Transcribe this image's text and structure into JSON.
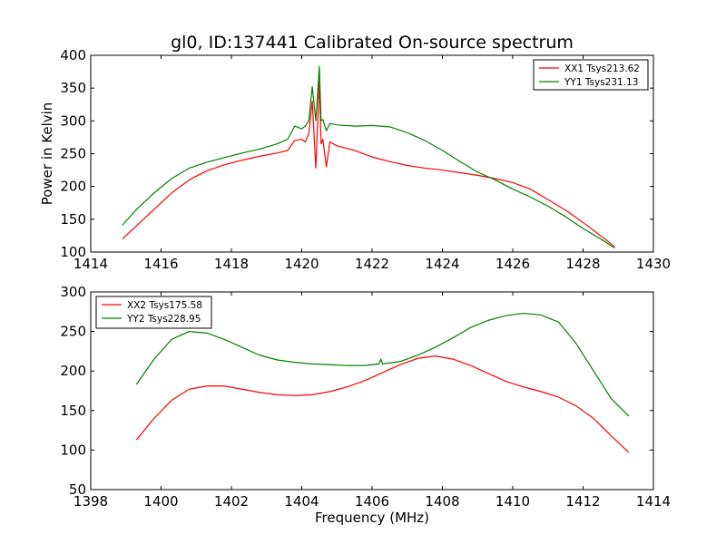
{
  "title": "gl0, ID:137441 Calibrated On-source spectrum",
  "chart_data": [
    {
      "type": "line",
      "title": "gl0, ID:137441 Calibrated On-source spectrum",
      "xlabel": "",
      "ylabel": "Power in Kelvin",
      "xlim": [
        1414,
        1430
      ],
      "ylim": [
        100,
        400
      ],
      "xticks": [
        1414,
        1416,
        1418,
        1420,
        1422,
        1424,
        1426,
        1428,
        1430
      ],
      "yticks": [
        100,
        150,
        200,
        250,
        300,
        350,
        400
      ],
      "legend_position": "top-right",
      "grid": false,
      "series": [
        {
          "name": "XX1 Tsys213.62",
          "color": "#ff0000",
          "x": [
            1414.9,
            1415.3,
            1415.8,
            1416.3,
            1416.8,
            1417.3,
            1417.8,
            1418.3,
            1418.8,
            1419.3,
            1419.6,
            1419.8,
            1420.0,
            1420.1,
            1420.2,
            1420.3,
            1420.4,
            1420.5,
            1420.55,
            1420.6,
            1420.7,
            1420.8,
            1421.0,
            1421.5,
            1422.0,
            1422.5,
            1423.0,
            1423.5,
            1424.0,
            1424.5,
            1425.0,
            1425.5,
            1426.0,
            1426.5,
            1427.0,
            1427.5,
            1428.0,
            1428.5,
            1428.9
          ],
          "values": [
            120,
            140,
            165,
            190,
            210,
            224,
            233,
            240,
            246,
            251,
            255,
            270,
            272,
            268,
            280,
            330,
            228,
            360,
            265,
            272,
            230,
            268,
            262,
            255,
            245,
            238,
            232,
            228,
            225,
            221,
            217,
            212,
            206,
            196,
            180,
            164,
            145,
            125,
            108
          ]
        },
        {
          "name": "YY1 Tsys231.13",
          "color": "#008000",
          "x": [
            1414.9,
            1415.3,
            1415.8,
            1416.3,
            1416.8,
            1417.3,
            1417.8,
            1418.3,
            1418.8,
            1419.3,
            1419.6,
            1419.8,
            1420.0,
            1420.1,
            1420.2,
            1420.3,
            1420.4,
            1420.5,
            1420.55,
            1420.6,
            1420.7,
            1420.8,
            1421.0,
            1421.5,
            1422.0,
            1422.5,
            1423.0,
            1423.5,
            1424.0,
            1424.5,
            1425.0,
            1425.5,
            1426.0,
            1426.5,
            1427.0,
            1427.5,
            1428.0,
            1428.5,
            1428.9
          ],
          "values": [
            141,
            165,
            190,
            212,
            228,
            237,
            244,
            251,
            257,
            265,
            272,
            292,
            288,
            292,
            300,
            352,
            300,
            383,
            300,
            302,
            285,
            296,
            294,
            292,
            293,
            291,
            282,
            270,
            255,
            238,
            222,
            210,
            196,
            184,
            170,
            154,
            136,
            120,
            106
          ]
        }
      ]
    },
    {
      "type": "line",
      "title": "",
      "xlabel": "Frequency (MHz)",
      "ylabel": "",
      "xlim": [
        1398,
        1414
      ],
      "ylim": [
        50,
        300
      ],
      "xticks": [
        1398,
        1400,
        1402,
        1404,
        1406,
        1408,
        1410,
        1412,
        1414
      ],
      "yticks": [
        50,
        100,
        150,
        200,
        250,
        300
      ],
      "legend_position": "top-left",
      "grid": false,
      "series": [
        {
          "name": "XX2 Tsys175.58",
          "color": "#ff0000",
          "x": [
            1399.3,
            1399.8,
            1400.3,
            1400.8,
            1401.3,
            1401.8,
            1402.3,
            1402.8,
            1403.3,
            1403.8,
            1404.3,
            1404.8,
            1405.3,
            1405.8,
            1406.3,
            1406.8,
            1407.3,
            1407.8,
            1408.3,
            1408.8,
            1409.3,
            1409.8,
            1410.3,
            1410.8,
            1411.3,
            1411.8,
            1412.3,
            1412.8,
            1413.3
          ],
          "values": [
            113,
            140,
            163,
            177,
            181,
            181,
            177,
            173,
            170,
            169,
            170,
            174,
            180,
            188,
            198,
            208,
            216,
            219,
            215,
            207,
            197,
            187,
            180,
            174,
            167,
            156,
            140,
            118,
            97
          ]
        },
        {
          "name": "YY2 Tsys228.95",
          "color": "#008000",
          "x": [
            1399.3,
            1399.8,
            1400.3,
            1400.8,
            1401.3,
            1401.8,
            1402.3,
            1402.8,
            1403.3,
            1403.8,
            1404.3,
            1404.8,
            1405.3,
            1405.8,
            1406.2,
            1406.25,
            1406.3,
            1406.8,
            1407.3,
            1407.8,
            1408.3,
            1408.8,
            1409.3,
            1409.8,
            1410.3,
            1410.8,
            1411.3,
            1411.8,
            1412.3,
            1412.8,
            1413.3
          ],
          "values": [
            183,
            215,
            240,
            250,
            248,
            240,
            230,
            220,
            214,
            211,
            209,
            208,
            207,
            207,
            209,
            215,
            209,
            212,
            220,
            230,
            242,
            255,
            264,
            270,
            273,
            271,
            262,
            235,
            200,
            165,
            143
          ]
        }
      ]
    }
  ]
}
